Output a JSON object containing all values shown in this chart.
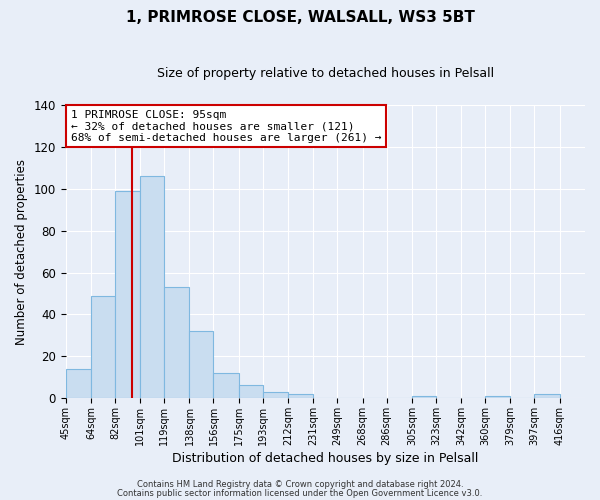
{
  "title": "1, PRIMROSE CLOSE, WALSALL, WS3 5BT",
  "subtitle": "Size of property relative to detached houses in Pelsall",
  "xlabel": "Distribution of detached houses by size in Pelsall",
  "ylabel": "Number of detached properties",
  "bin_labels": [
    "45sqm",
    "64sqm",
    "82sqm",
    "101sqm",
    "119sqm",
    "138sqm",
    "156sqm",
    "175sqm",
    "193sqm",
    "212sqm",
    "231sqm",
    "249sqm",
    "268sqm",
    "286sqm",
    "305sqm",
    "323sqm",
    "342sqm",
    "360sqm",
    "379sqm",
    "397sqm",
    "416sqm"
  ],
  "bin_edges": [
    45,
    64,
    82,
    101,
    119,
    138,
    156,
    175,
    193,
    212,
    231,
    249,
    268,
    286,
    305,
    323,
    342,
    360,
    379,
    397,
    416
  ],
  "bar_heights": [
    14,
    49,
    99,
    106,
    53,
    32,
    12,
    6,
    3,
    2,
    0,
    0,
    0,
    0,
    1,
    0,
    0,
    1,
    0,
    2
  ],
  "bar_color": "#c9ddf0",
  "bar_edge_color": "#7fb8e0",
  "vline_x": 95,
  "vline_color": "#cc0000",
  "annotation_title": "1 PRIMROSE CLOSE: 95sqm",
  "annotation_line1": "← 32% of detached houses are smaller (121)",
  "annotation_line2": "68% of semi-detached houses are larger (261) →",
  "annotation_box_color": "white",
  "annotation_box_edge_color": "#cc0000",
  "ylim": [
    0,
    140
  ],
  "yticks": [
    0,
    20,
    40,
    60,
    80,
    100,
    120,
    140
  ],
  "footer1": "Contains HM Land Registry data © Crown copyright and database right 2024.",
  "footer2": "Contains public sector information licensed under the Open Government Licence v3.0.",
  "bg_color": "#e8eef8",
  "plot_bg_color": "#e8eef8",
  "grid_color": "#ffffff",
  "title_fontsize": 11,
  "subtitle_fontsize": 9
}
